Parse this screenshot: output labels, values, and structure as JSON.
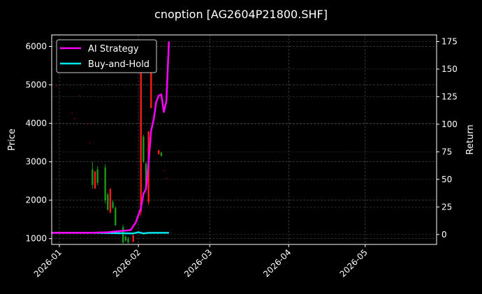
{
  "chart_data": {
    "type": "candlestick+line",
    "title": "cnoption [AG2604P21800.SHF]",
    "ylabel_left": "Price",
    "ylabel_right": "Return",
    "xlim": [
      "2025-12-29",
      "2026-05-29"
    ],
    "ylim_left": [
      850,
      6300
    ],
    "ylim_right": [
      -9,
      181
    ],
    "x_ticks": [
      "2026-01",
      "2026-02",
      "2026-03",
      "2026-04",
      "2026-05"
    ],
    "y_ticks_left": [
      1000,
      2000,
      3000,
      4000,
      5000,
      6000
    ],
    "y_ticks_right": [
      0,
      25,
      50,
      75,
      100,
      125,
      150,
      175
    ],
    "grid": true,
    "legend_position": "top-left",
    "colors": {
      "up": "#1a9a1a",
      "down": "#ff1a1a",
      "faint": "#5a0000",
      "strategy": "#ff00ff",
      "buyhold": "#00e5ee",
      "background": "#000000"
    },
    "candles": [
      {
        "date": "2025-12-31",
        "open": 4990,
        "high": 5000,
        "low": 4960,
        "close": 4970
      },
      {
        "date": "2026-01-06",
        "open": 4290,
        "high": 4300,
        "low": 4260,
        "close": 4270
      },
      {
        "date": "2026-01-07",
        "open": 4130,
        "high": 4140,
        "low": 4100,
        "close": 4110
      },
      {
        "date": "2026-01-09",
        "open": 4730,
        "high": 4740,
        "low": 4700,
        "close": 4710
      },
      {
        "date": "2026-01-12",
        "open": 3990,
        "high": 4000,
        "low": 3960,
        "close": 3970
      },
      {
        "date": "2026-01-13",
        "open": 3510,
        "high": 3520,
        "low": 3480,
        "close": 3490
      },
      {
        "date": "2026-01-14",
        "open": 2400,
        "high": 3000,
        "low": 2300,
        "close": 2800
      },
      {
        "date": "2026-01-15",
        "open": 2750,
        "high": 2750,
        "low": 2300,
        "close": 2300
      },
      {
        "date": "2026-01-16",
        "open": 2450,
        "high": 2880,
        "low": 2390,
        "close": 2800
      },
      {
        "date": "2026-01-19",
        "open": 2000,
        "high": 2930,
        "low": 1910,
        "close": 2850
      },
      {
        "date": "2026-01-20",
        "open": 1750,
        "high": 2190,
        "low": 1730,
        "close": 2150
      },
      {
        "date": "2026-01-21",
        "open": 2300,
        "high": 2300,
        "low": 1660,
        "close": 1680
      },
      {
        "date": "2026-01-22",
        "open": 1800,
        "high": 2000,
        "low": 1780,
        "close": 1950
      },
      {
        "date": "2026-01-23",
        "open": 1350,
        "high": 1840,
        "low": 1330,
        "close": 1800
      },
      {
        "date": "2026-01-26",
        "open": 900,
        "high": 1365,
        "low": 870,
        "close": 1300
      },
      {
        "date": "2026-01-27",
        "open": 950,
        "high": 1090,
        "low": 930,
        "close": 1050
      },
      {
        "date": "2026-01-28",
        "open": 900,
        "high": 1050,
        "low": 870,
        "close": 1000
      },
      {
        "date": "2026-01-30",
        "open": 1090,
        "high": 1090,
        "low": 910,
        "close": 920
      },
      {
        "date": "2026-02-02",
        "open": 6000,
        "high": 6160,
        "low": 1600,
        "close": 1700
      },
      {
        "date": "2026-02-03",
        "open": 3000,
        "high": 3700,
        "low": 2970,
        "close": 3650
      },
      {
        "date": "2026-02-04",
        "open": 2300,
        "high": 3000,
        "low": 2290,
        "close": 2950
      },
      {
        "date": "2026-02-05",
        "open": 3790,
        "high": 3790,
        "low": 1880,
        "close": 1950
      },
      {
        "date": "2026-02-06",
        "open": 5380,
        "high": 5380,
        "low": 4390,
        "close": 4400
      },
      {
        "date": "2026-02-09",
        "open": 3300,
        "high": 3300,
        "low": 3190,
        "close": 3200
      },
      {
        "date": "2026-02-10",
        "open": 3150,
        "high": 3250,
        "low": 3140,
        "close": 3240
      },
      {
        "date": "2026-02-11",
        "open": 2780,
        "high": 2800,
        "low": 2770,
        "close": 2790
      },
      {
        "date": "2026-02-12",
        "open": 2580,
        "high": 2590,
        "low": 2560,
        "close": 2570
      }
    ],
    "series": [
      {
        "name": "AI Strategy",
        "axis": "right",
        "x": [
          "2025-12-29",
          "2026-01-12",
          "2026-01-20",
          "2026-01-29",
          "2026-01-31",
          "2026-02-02",
          "2026-02-03",
          "2026-02-04",
          "2026-02-05",
          "2026-02-06",
          "2026-02-07",
          "2026-02-08",
          "2026-02-09",
          "2026-02-10",
          "2026-02-11",
          "2026-02-12",
          "2026-02-13"
        ],
        "values": [
          1.5,
          1.5,
          2,
          4,
          11,
          24,
          37,
          41,
          65,
          94,
          104,
          120,
          126,
          127,
          111,
          121,
          175
        ]
      },
      {
        "name": "Buy-and-Hold",
        "axis": "right",
        "x": [
          "2025-12-29",
          "2026-01-15",
          "2026-01-30",
          "2026-02-01",
          "2026-02-03",
          "2026-02-05",
          "2026-02-08",
          "2026-02-13"
        ],
        "values": [
          1.5,
          1.5,
          1,
          2,
          1,
          1.5,
          1.5,
          1.5
        ]
      }
    ]
  }
}
